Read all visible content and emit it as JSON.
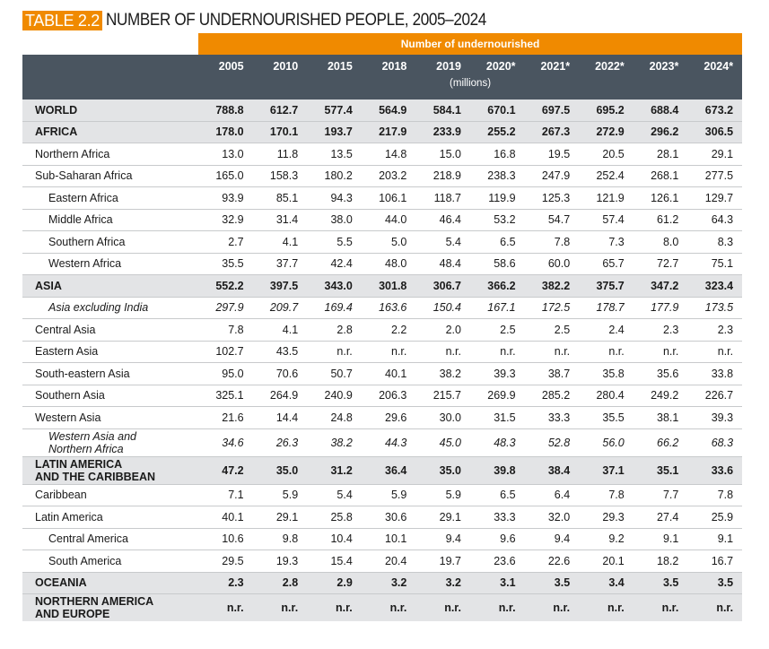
{
  "title": {
    "tag": "TABLE 2.2",
    "text": "NUMBER OF UNDERNOURISHED PEOPLE, 2005–2024"
  },
  "header": {
    "group_label": "Number of undernourished",
    "years": [
      "2005",
      "2010",
      "2015",
      "2018",
      "2019",
      "2020*",
      "2021*",
      "2022*",
      "2023*",
      "2024*"
    ],
    "units": "(millions)"
  },
  "rows": [
    {
      "label": "WORLD",
      "values": [
        "788.8",
        "612.7",
        "577.4",
        "564.9",
        "584.1",
        "670.1",
        "697.5",
        "695.2",
        "688.4",
        "673.2"
      ]
    },
    {
      "label": "AFRICA",
      "values": [
        "178.0",
        "170.1",
        "193.7",
        "217.9",
        "233.9",
        "255.2",
        "267.3",
        "272.9",
        "296.2",
        "306.5"
      ]
    },
    {
      "label": "Northern Africa",
      "values": [
        "13.0",
        "11.8",
        "13.5",
        "14.8",
        "15.0",
        "16.8",
        "19.5",
        "20.5",
        "28.1",
        "29.1"
      ]
    },
    {
      "label": "Sub-Saharan Africa",
      "values": [
        "165.0",
        "158.3",
        "180.2",
        "203.2",
        "218.9",
        "238.3",
        "247.9",
        "252.4",
        "268.1",
        "277.5"
      ]
    },
    {
      "label": "Eastern Africa",
      "values": [
        "93.9",
        "85.1",
        "94.3",
        "106.1",
        "118.7",
        "119.9",
        "125.3",
        "121.9",
        "126.1",
        "129.7"
      ]
    },
    {
      "label": "Middle Africa",
      "values": [
        "32.9",
        "31.4",
        "38.0",
        "44.0",
        "46.4",
        "53.2",
        "54.7",
        "57.4",
        "61.2",
        "64.3"
      ]
    },
    {
      "label": "Southern Africa",
      "values": [
        "2.7",
        "4.1",
        "5.5",
        "5.0",
        "5.4",
        "6.5",
        "7.8",
        "7.3",
        "8.0",
        "8.3"
      ]
    },
    {
      "label": "Western Africa",
      "values": [
        "35.5",
        "37.7",
        "42.4",
        "48.0",
        "48.4",
        "58.6",
        "60.0",
        "65.7",
        "72.7",
        "75.1"
      ]
    },
    {
      "label": "ASIA",
      "values": [
        "552.2",
        "397.5",
        "343.0",
        "301.8",
        "306.7",
        "366.2",
        "382.2",
        "375.7",
        "347.2",
        "323.4"
      ]
    },
    {
      "label": "Asia excluding India",
      "values": [
        "297.9",
        "209.7",
        "169.4",
        "163.6",
        "150.4",
        "167.1",
        "172.5",
        "178.7",
        "177.9",
        "173.5"
      ]
    },
    {
      "label": "Central Asia",
      "values": [
        "7.8",
        "4.1",
        "2.8",
        "2.2",
        "2.0",
        "2.5",
        "2.5",
        "2.4",
        "2.3",
        "2.3"
      ]
    },
    {
      "label": "Eastern Asia",
      "values": [
        "102.7",
        "43.5",
        "n.r.",
        "n.r.",
        "n.r.",
        "n.r.",
        "n.r.",
        "n.r.",
        "n.r.",
        "n.r."
      ]
    },
    {
      "label": "South-eastern Asia",
      "values": [
        "95.0",
        "70.6",
        "50.7",
        "40.1",
        "38.2",
        "39.3",
        "38.7",
        "35.8",
        "35.6",
        "33.8"
      ]
    },
    {
      "label": "Southern Asia",
      "values": [
        "325.1",
        "264.9",
        "240.9",
        "206.3",
        "215.7",
        "269.9",
        "285.2",
        "280.4",
        "249.2",
        "226.7"
      ]
    },
    {
      "label": "Western Asia",
      "values": [
        "21.6",
        "14.4",
        "24.8",
        "29.6",
        "30.0",
        "31.5",
        "33.3",
        "35.5",
        "38.1",
        "39.3"
      ]
    },
    {
      "label_line1": "Western Asia and",
      "label_line2": "Northern Africa",
      "values": [
        "34.6",
        "26.3",
        "38.2",
        "44.3",
        "45.0",
        "48.3",
        "52.8",
        "56.0",
        "66.2",
        "68.3"
      ]
    },
    {
      "label_line1": "LATIN AMERICA",
      "label_line2": "AND THE CARIBBEAN",
      "values": [
        "47.2",
        "35.0",
        "31.2",
        "36.4",
        "35.0",
        "39.8",
        "38.4",
        "37.1",
        "35.1",
        "33.6"
      ]
    },
    {
      "label": "Caribbean",
      "values": [
        "7.1",
        "5.9",
        "5.4",
        "5.9",
        "5.9",
        "6.5",
        "6.4",
        "7.8",
        "7.7",
        "7.8"
      ]
    },
    {
      "label": "Latin America",
      "values": [
        "40.1",
        "29.1",
        "25.8",
        "30.6",
        "29.1",
        "33.3",
        "32.0",
        "29.3",
        "27.4",
        "25.9"
      ]
    },
    {
      "label": "Central America",
      "values": [
        "10.6",
        "9.8",
        "10.4",
        "10.1",
        "9.4",
        "9.6",
        "9.4",
        "9.2",
        "9.1",
        "9.1"
      ]
    },
    {
      "label": "South America",
      "values": [
        "29.5",
        "19.3",
        "15.4",
        "20.4",
        "19.7",
        "23.6",
        "22.6",
        "20.1",
        "18.2",
        "16.7"
      ]
    },
    {
      "label": "OCEANIA",
      "values": [
        "2.3",
        "2.8",
        "2.9",
        "3.2",
        "3.2",
        "3.1",
        "3.5",
        "3.4",
        "3.5",
        "3.5"
      ]
    },
    {
      "label_line1": "NORTHERN AMERICA",
      "label_line2": "AND EUROPE",
      "values": [
        "n.r.",
        "n.r.",
        "n.r.",
        "n.r.",
        "n.r.",
        "n.r.",
        "n.r.",
        "n.r.",
        "n.r.",
        "n.r."
      ]
    }
  ],
  "colors": {
    "accent": "#f08a00",
    "header_bg": "#4a5560",
    "bold_row_bg": "#e3e4e6"
  }
}
